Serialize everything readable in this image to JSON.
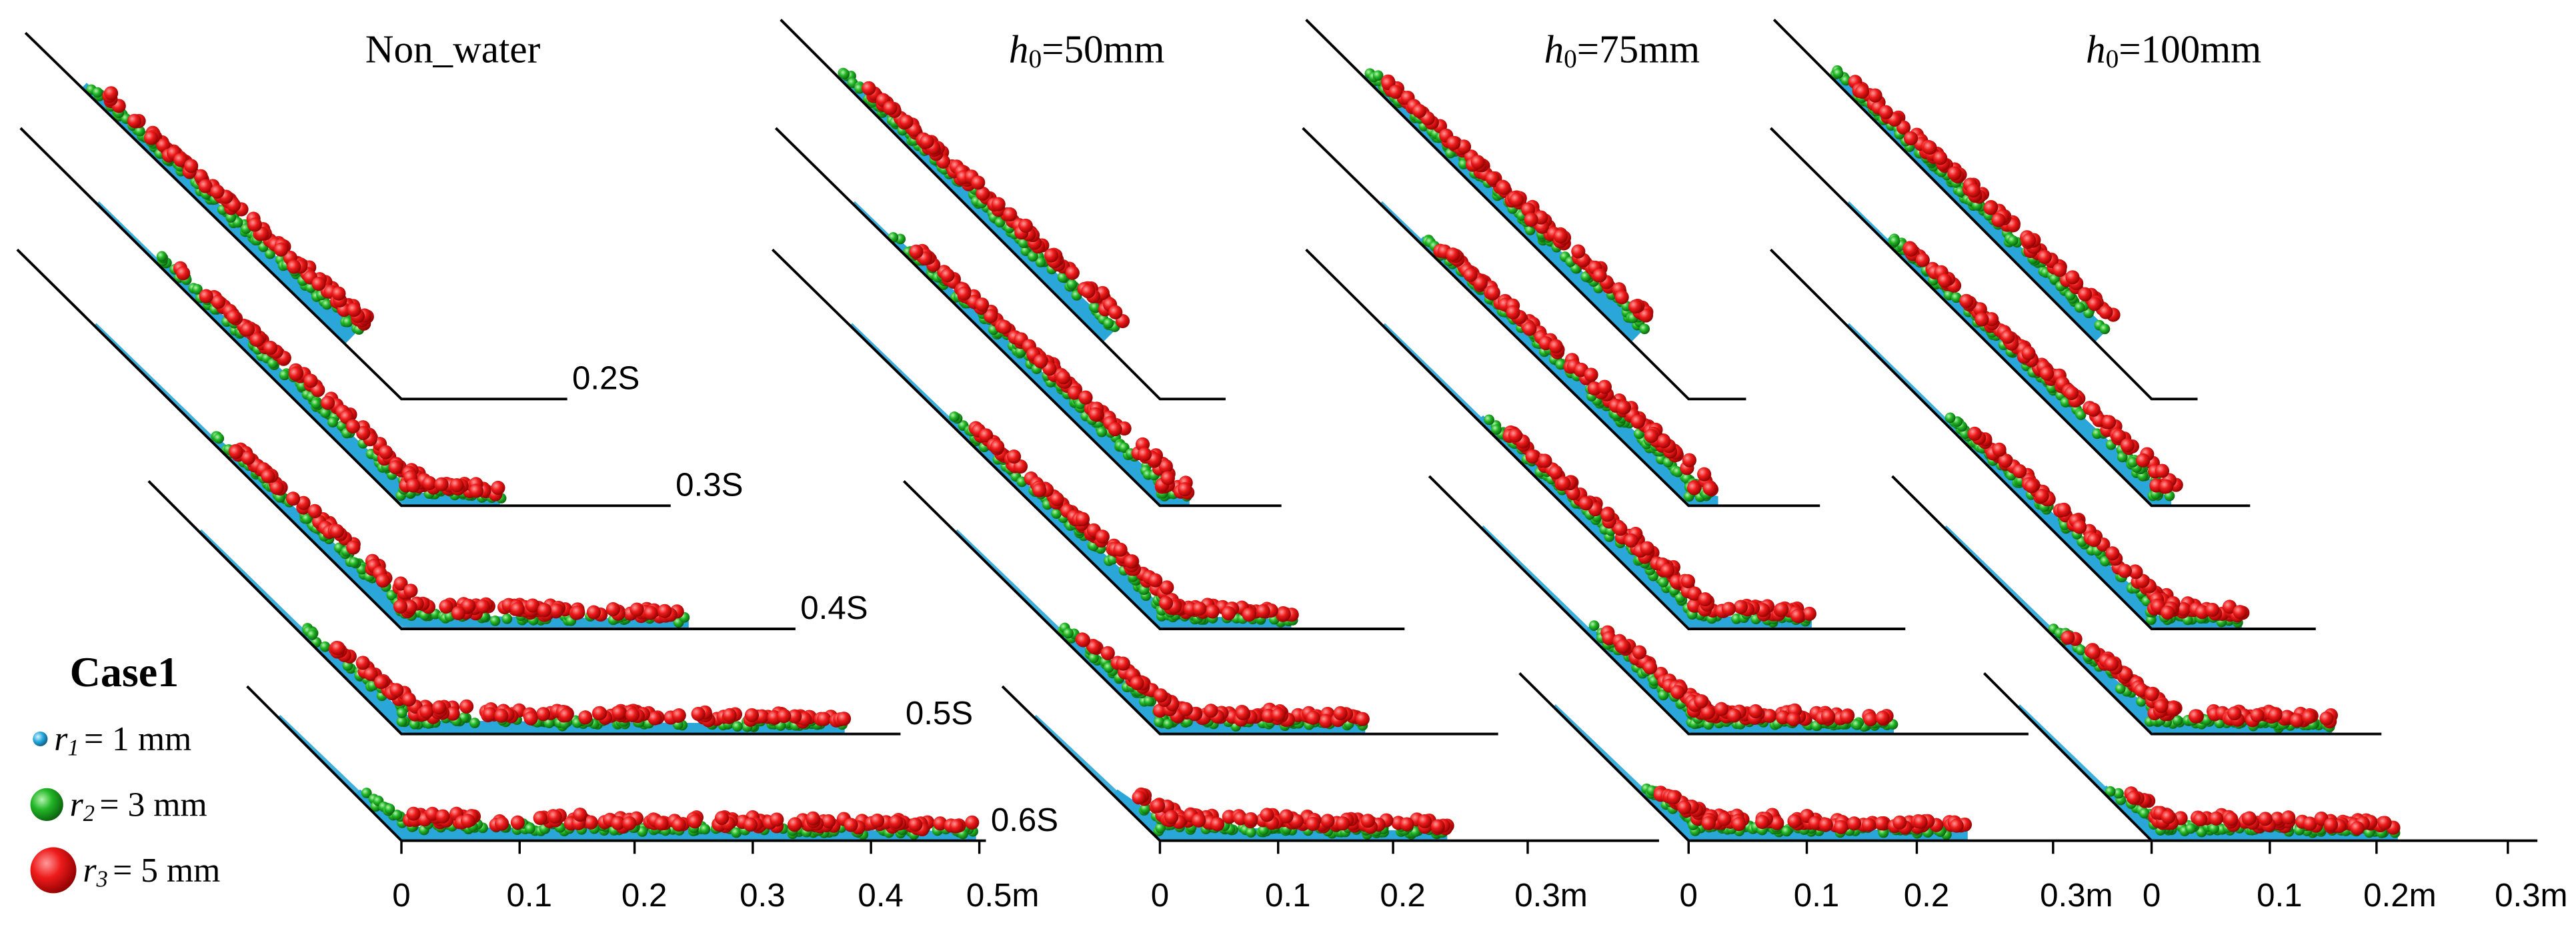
{
  "panels": [
    {
      "title": [
        "Non_water"
      ],
      "time_labels": [
        "0.2S",
        "0.3S",
        "0.4S",
        "0.5S",
        "0.6S"
      ],
      "x_ticks": [
        "0",
        "0.1",
        "0.2",
        "0.3",
        "0.4",
        "0.5m"
      ]
    },
    {
      "title": [
        "h",
        "0",
        "=50mm"
      ],
      "time_labels": [],
      "x_ticks": [
        "0",
        "0.1",
        "0.2",
        "0.3m"
      ]
    },
    {
      "title": [
        "h",
        "0",
        "=75mm"
      ],
      "time_labels": [],
      "x_ticks": [
        "0",
        "0.1",
        "0.2",
        "0.3m"
      ]
    },
    {
      "title": [
        "h",
        "0",
        "=100mm"
      ],
      "time_labels": [],
      "x_ticks": [
        "0",
        "0.1",
        "0.2m",
        "0.3m"
      ]
    }
  ],
  "legend": {
    "title": "Case1",
    "items": [
      {
        "symbol": "r",
        "sub": "1",
        "text": "= 1 mm"
      },
      {
        "symbol": "r",
        "sub": "2",
        "text": "= 3 mm"
      },
      {
        "symbol": "r",
        "sub": "3",
        "text": "= 5 mm"
      }
    ]
  }
}
